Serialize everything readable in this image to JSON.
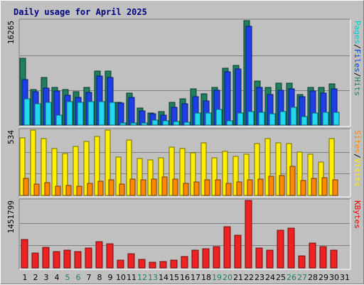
{
  "chart_data": {
    "type": "bar",
    "title": "Daily usage for April 2025",
    "categories": [
      "1",
      "2",
      "3",
      "4",
      "5",
      "6",
      "7",
      "8",
      "9",
      "10",
      "11",
      "12",
      "13",
      "14",
      "15",
      "16",
      "17",
      "18",
      "19",
      "20",
      "21",
      "22",
      "23",
      "24",
      "25",
      "26",
      "27",
      "28",
      "29",
      "30",
      "31"
    ],
    "weekend_days": [
      "5",
      "6",
      "12",
      "13",
      "19",
      "20",
      "26",
      "27"
    ],
    "panels": [
      {
        "id": "pages-files-hits",
        "ymax_label": "16265",
        "ylim": [
          0,
          16265
        ],
        "legend": [
          {
            "text": "Pages",
            "color": "#00cccc"
          },
          {
            "text": "/",
            "color": "#000000"
          },
          {
            "text": "Files",
            "color": "#0044cc"
          },
          {
            "text": "/",
            "color": "#000000"
          },
          {
            "text": "Hits",
            "color": "#1f7f5f"
          }
        ],
        "series": [
          {
            "name": "Hits",
            "color": "#1f7f5f",
            "values": [
              10420,
              5510,
              7380,
              5860,
              5580,
              5190,
              5900,
              8370,
              8360,
              3530,
              4970,
              2610,
              1880,
              2090,
              3550,
              4100,
              5610,
              4840,
              5860,
              8870,
              9280,
              16265,
              6910,
              5830,
              6530,
              6530,
              4800,
              5830,
              5830,
              6370,
              null
            ]
          },
          {
            "name": "Files",
            "color": "#1e3fe6",
            "values": [
              7120,
              5190,
              5740,
              5280,
              4600,
              4340,
              5080,
              7660,
              7380,
              3390,
              4260,
              2230,
              1750,
              1560,
              2750,
              3340,
              4430,
              3740,
              5380,
              8300,
              8740,
              15370,
              5880,
              4800,
              5380,
              5650,
              4400,
              5340,
              5010,
              5650,
              null
            ]
          },
          {
            "name": "Pages",
            "color": "#22d8f0",
            "values": [
              4140,
              3280,
              3500,
              1530,
              3650,
              3550,
              3660,
              3630,
              3500,
              310,
              360,
              310,
              720,
              680,
              500,
              490,
              1840,
              1850,
              2470,
              620,
              1910,
              2140,
              2020,
              1750,
              2060,
              2810,
              1370,
              1880,
              1960,
              1980,
              null
            ]
          }
        ]
      },
      {
        "id": "sites-visits",
        "ymax_label": "534",
        "ylim": [
          0,
          534
        ],
        "legend": [
          {
            "text": "Sites",
            "color": "#ff8800"
          },
          {
            "text": "/",
            "color": "#000000"
          },
          {
            "text": "Visits",
            "color": "#ffee00"
          }
        ],
        "series": [
          {
            "name": "Visits",
            "color": "#ffee00",
            "values": [
              470,
              534,
              462,
              381,
              345,
              403,
              444,
              482,
              532,
              315,
              451,
              301,
              293,
              307,
              392,
              381,
              348,
              427,
              305,
              361,
              320,
              337,
              422,
              465,
              429,
              422,
              353,
              338,
              271,
              464,
              null
            ]
          },
          {
            "name": "Sites",
            "color": "#ff8800",
            "values": [
              138,
              94,
              102,
              78,
              80,
              74,
              100,
              116,
              130,
              92,
              132,
              130,
              134,
              152,
              136,
              100,
              108,
              126,
              130,
              98,
              112,
              128,
              134,
              156,
              160,
              236,
              120,
              138,
              148,
              128,
              null
            ]
          }
        ]
      },
      {
        "id": "kbytes",
        "ymax_label": "1451799",
        "ylim": [
          0,
          1451799
        ],
        "legend": [
          {
            "text": "KBytes",
            "color": "#ee0000"
          }
        ],
        "series": [
          {
            "name": "KBytes",
            "color": "#ee2222",
            "values": [
              613650,
              322270,
              440010,
              353570,
              378670,
              358200,
              432680,
              560130,
              522510,
              161870,
              312460,
              176570,
              126890,
              139240,
              175660,
              243350,
              387350,
              418520,
              462570,
              884020,
              696850,
              1451799,
              426830,
              375780,
              808480,
              859310,
              254740,
              527790,
              460250,
              387350,
              null
            ]
          }
        ]
      }
    ],
    "grid": true
  }
}
